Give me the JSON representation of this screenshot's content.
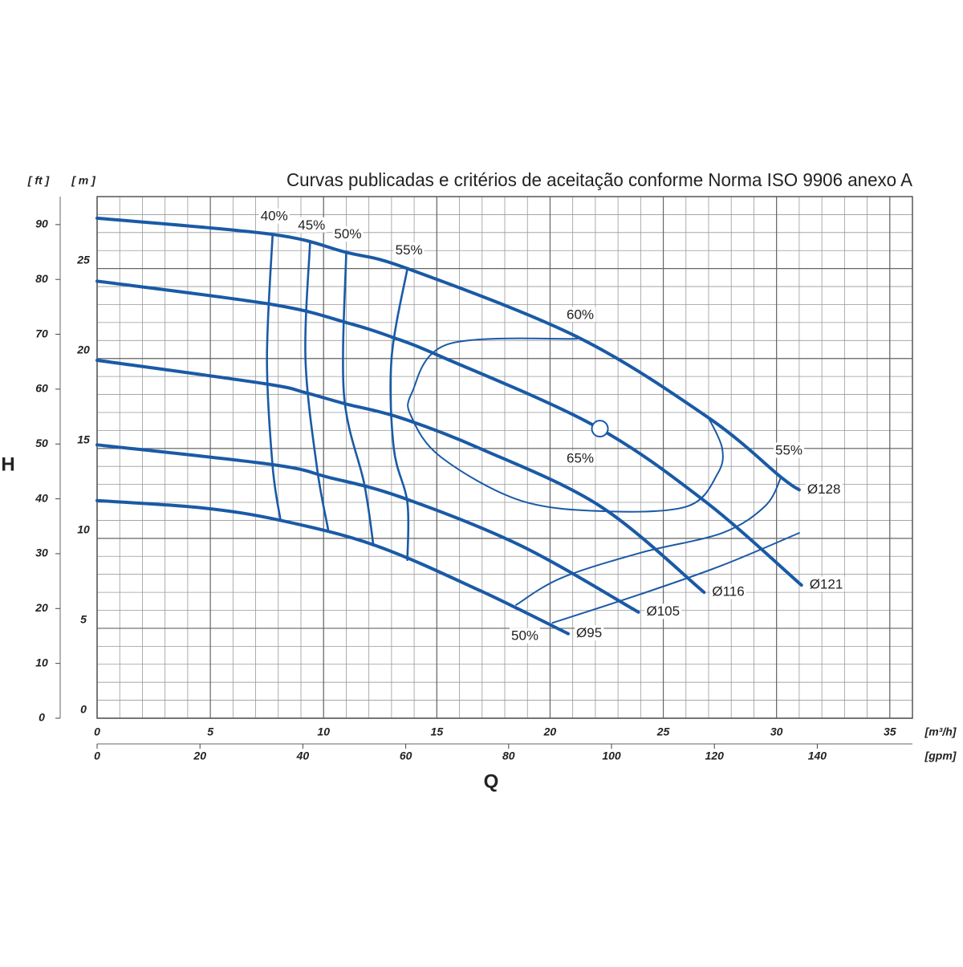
{
  "chart_data": {
    "type": "line",
    "title": "Curvas publicadas e critérios de aceitação conforme Norma ISO 9906 anexo A",
    "y_label": "H",
    "x_label": "Q",
    "y_unit": "[ m ]",
    "y2_unit": "[ ft ]",
    "x_unit": "[m³/h]",
    "x2_unit": "[gpm]",
    "xlim": [
      0,
      36
    ],
    "xticks": [
      0,
      5,
      10,
      15,
      20,
      25,
      30,
      35
    ],
    "x2lim": [
      0,
      158.5
    ],
    "x2ticks": [
      0,
      20,
      40,
      60,
      80,
      100,
      120,
      140
    ],
    "ylim": [
      0,
      29
    ],
    "yticks": [
      0,
      5,
      10,
      15,
      20,
      25
    ],
    "y2lim": [
      0,
      95.1
    ],
    "y2ticks": [
      0,
      10,
      20,
      30,
      40,
      50,
      60,
      70,
      80,
      90
    ],
    "grid": true,
    "color": "#1a5aa6",
    "series": [
      {
        "name": "Ø128",
        "style": "impeller",
        "x": [
          0,
          7.75,
          11.0,
          13.7,
          21.2,
          27.0,
          30.2,
          31.0
        ],
        "values": [
          27.8,
          26.9,
          25.9,
          25.0,
          21.2,
          16.7,
          13.4,
          12.7
        ]
      },
      {
        "name": "Ø121",
        "style": "impeller",
        "x": [
          0,
          7.75,
          11.0,
          13.0,
          15.2,
          21.9,
          26.8,
          31.1
        ],
        "values": [
          24.3,
          23.0,
          22.0,
          21.2,
          20.1,
          16.3,
          12.1,
          7.4
        ]
      },
      {
        "name": "Ø116",
        "style": "impeller",
        "x": [
          0,
          7.4,
          9.2,
          10.9,
          13.4,
          16.9,
          22.2,
          26.8
        ],
        "values": [
          19.9,
          18.6,
          18.1,
          17.5,
          16.7,
          15.0,
          11.8,
          7.0
        ]
      },
      {
        "name": "Ø105",
        "style": "impeller",
        "x": [
          0,
          7.75,
          10.2,
          13.4,
          18.7,
          23.9
        ],
        "values": [
          15.2,
          14.1,
          13.4,
          12.3,
          9.6,
          5.9
        ]
      },
      {
        "name": "Ø95",
        "style": "impeller",
        "x": [
          0,
          4.6,
          8.1,
          12.3,
          16.9,
          20.8
        ],
        "values": [
          12.1,
          11.7,
          11.0,
          9.6,
          7.1,
          4.7
        ]
      },
      {
        "name": "40%",
        "style": "efficiency",
        "x": [
          7.75,
          7.5,
          7.75,
          8.1
        ],
        "values": [
          26.9,
          20.0,
          14.0,
          11.0
        ]
      },
      {
        "name": "45%",
        "style": "efficiency",
        "x": [
          9.4,
          9.2,
          9.7,
          10.2
        ],
        "values": [
          26.4,
          20.0,
          14.0,
          10.5
        ]
      },
      {
        "name": "50%",
        "style": "efficiency",
        "x": [
          11.0,
          10.9,
          11.8,
          12.2
        ],
        "values": [
          25.9,
          18.0,
          13.0,
          9.6
        ]
      },
      {
        "name": "55%",
        "style": "efficiency",
        "x": [
          13.7,
          13.0,
          13.1,
          13.7,
          13.7
        ],
        "values": [
          25.0,
          20.0,
          15.0,
          12.0,
          8.8
        ]
      },
      {
        "name": "65%",
        "style": "contour",
        "x": [
          21.2,
          15.5,
          13.9,
          13.9,
          15.2,
          18.7,
          22.6,
          26.1,
          27.4,
          27.6,
          27.0
        ],
        "values": [
          21.1,
          20.8,
          18.1,
          16.7,
          14.5,
          12.1,
          11.5,
          11.8,
          13.6,
          15.0,
          16.7
        ]
      },
      {
        "name": "55%",
        "style": "contour",
        "x": [
          30.2,
          29.5,
          27.6,
          24.0,
          20.5,
          18.5
        ],
        "values": [
          13.4,
          11.8,
          10.3,
          9.2,
          7.8,
          6.3
        ]
      },
      {
        "name": "50%",
        "style": "contour",
        "x": [
          20.1,
          24.0,
          27.6,
          31.0
        ],
        "values": [
          5.3,
          6.9,
          8.5,
          10.3
        ]
      }
    ],
    "annotations": [
      "60%"
    ],
    "bep": {
      "x": 22.2,
      "y": 16.1
    }
  }
}
